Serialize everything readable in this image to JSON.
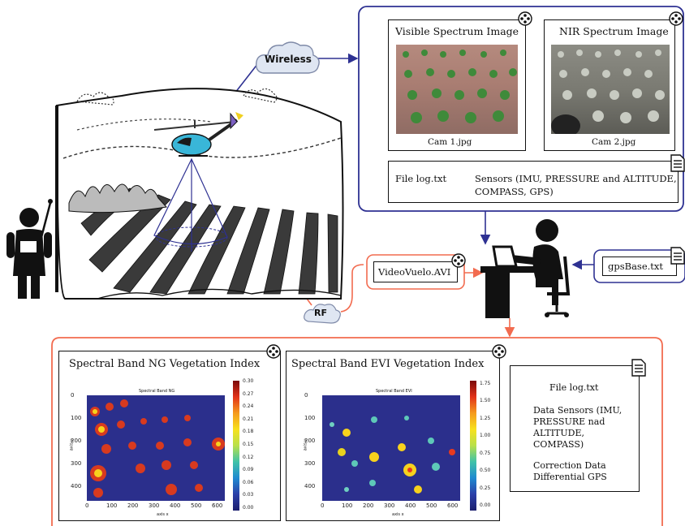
{
  "clouds": {
    "wireless": "Wireless",
    "rf": "RF"
  },
  "top_panel": {
    "visible": {
      "title": "Visible Spectrum Image",
      "caption": "Cam 1.jpg"
    },
    "nir": {
      "title": "NIR Spectrum Image",
      "caption": "Cam 2.jpg"
    },
    "log": {
      "label": "File log.txt",
      "sensors_line1": "Sensors (IMU, PRESSURE and ALTITUDE,",
      "sensors_line2": "COMPASS, GPS)"
    }
  },
  "video_file": "VideoVuelo.AVI",
  "gps_file": "gpsBase.txt",
  "bottom_panel": {
    "ng": {
      "title": "Spectral Band NG Vegetation Index",
      "plot_title": "Spectral Band NG",
      "xlabel": "axis x",
      "ylabel": "axis y",
      "yticks": [
        "0",
        "100",
        "200",
        "300",
        "400"
      ],
      "xticks": [
        "0",
        "100",
        "200",
        "300",
        "400",
        "500",
        "600"
      ],
      "cbar_ticks": [
        "0.30",
        "0.27",
        "0.24",
        "0.21",
        "0.18",
        "0.15",
        "0.12",
        "0.09",
        "0.06",
        "0.03",
        "0.00"
      ]
    },
    "evi": {
      "title": "Spectral Band EVI Vegetation Index",
      "plot_title": "Spectral Band EVI",
      "xlabel": "axis x",
      "ylabel": "axis y",
      "yticks": [
        "0",
        "100",
        "200",
        "300",
        "400"
      ],
      "xticks": [
        "0",
        "100",
        "200",
        "300",
        "400",
        "500",
        "600"
      ],
      "cbar_ticks": [
        "1.75",
        "1.50",
        "1.25",
        "1.00",
        "0.75",
        "0.50",
        "0.25",
        "0.00"
      ]
    },
    "log": {
      "title": "File log.txt",
      "data_line1": "Data Sensors (IMU,",
      "data_line2": "PRESSURE nad",
      "data_line3": "ALTITUDE,",
      "data_line4": "COMPASS)",
      "corr_line1": "Correction Data",
      "corr_line2": "Differential GPS"
    }
  },
  "colors": {
    "blue": "#2e3192",
    "orange": "#f26b4f",
    "heat_bg": "#2b2f8c"
  }
}
